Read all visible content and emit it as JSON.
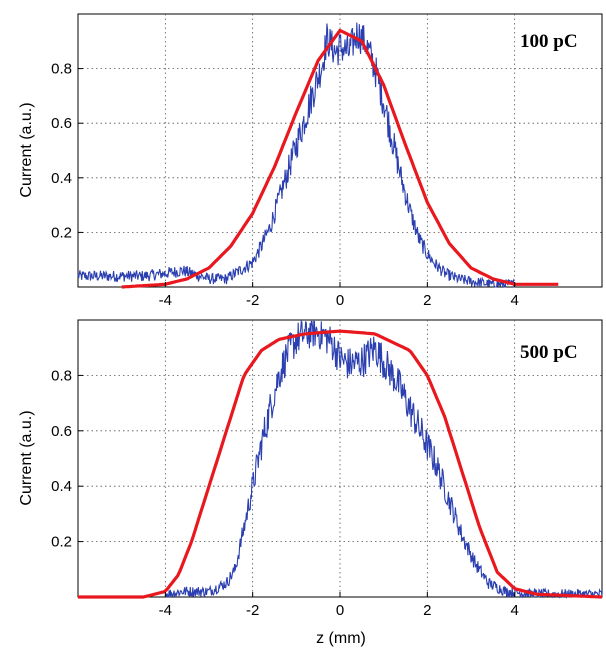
{
  "chart_data": [
    {
      "type": "line",
      "annotation": "100 pC",
      "xlabel": "",
      "ylabel": "Current (a.u.)",
      "xlim": [
        -6,
        6
      ],
      "ylim": [
        0,
        1
      ],
      "xticks": [
        "-4",
        "-2",
        "0",
        "2",
        "4"
      ],
      "yticks": [
        "0.2",
        "0.4",
        "0.6",
        "0.8"
      ],
      "grid": true,
      "series": [
        {
          "color": "#2b3fb0",
          "style": "noisy",
          "points": [
            [
              -6.0,
              0.04
            ],
            [
              -5.0,
              0.04
            ],
            [
              -4.5,
              0.04
            ],
            [
              -4.0,
              0.05
            ],
            [
              -3.6,
              0.06
            ],
            [
              -3.2,
              0.04
            ],
            [
              -3.0,
              0.03
            ],
            [
              -2.6,
              0.03
            ],
            [
              -2.4,
              0.05
            ],
            [
              -2.2,
              0.07
            ],
            [
              -2.0,
              0.09
            ],
            [
              -1.8,
              0.15
            ],
            [
              -1.6,
              0.22
            ],
            [
              -1.4,
              0.32
            ],
            [
              -1.2,
              0.42
            ],
            [
              -1.0,
              0.52
            ],
            [
              -0.8,
              0.62
            ],
            [
              -0.6,
              0.72
            ],
            [
              -0.4,
              0.82
            ],
            [
              -0.3,
              0.91
            ],
            [
              -0.1,
              0.86
            ],
            [
              0.0,
              0.88
            ],
            [
              0.2,
              0.86
            ],
            [
              0.4,
              0.93
            ],
            [
              0.6,
              0.89
            ],
            [
              0.8,
              0.8
            ],
            [
              1.0,
              0.68
            ],
            [
              1.2,
              0.54
            ],
            [
              1.4,
              0.4
            ],
            [
              1.6,
              0.28
            ],
            [
              1.8,
              0.18
            ],
            [
              2.0,
              0.12
            ],
            [
              2.2,
              0.08
            ],
            [
              2.4,
              0.05
            ],
            [
              2.7,
              0.03
            ],
            [
              3.0,
              0.02
            ],
            [
              3.5,
              0.01
            ],
            [
              4.0,
              0.01
            ]
          ]
        },
        {
          "color": "#e8181e",
          "style": "smooth",
          "points": [
            [
              -5.0,
              0.0
            ],
            [
              -4.0,
              0.01
            ],
            [
              -3.5,
              0.03
            ],
            [
              -3.0,
              0.07
            ],
            [
              -2.5,
              0.15
            ],
            [
              -2.0,
              0.27
            ],
            [
              -1.5,
              0.44
            ],
            [
              -1.0,
              0.64
            ],
            [
              -0.5,
              0.83
            ],
            [
              0.0,
              0.94
            ],
            [
              0.5,
              0.9
            ],
            [
              1.0,
              0.74
            ],
            [
              1.5,
              0.52
            ],
            [
              2.0,
              0.31
            ],
            [
              2.5,
              0.16
            ],
            [
              3.0,
              0.07
            ],
            [
              3.5,
              0.03
            ],
            [
              4.0,
              0.01
            ],
            [
              5.0,
              0.01
            ]
          ]
        }
      ]
    },
    {
      "type": "line",
      "annotation": "500 pC",
      "xlabel": "z (mm)",
      "ylabel": "Current (a.u.)",
      "xlim": [
        -6,
        6
      ],
      "ylim": [
        0,
        1
      ],
      "xticks": [
        "-4",
        "-2",
        "0",
        "2",
        "4"
      ],
      "yticks": [
        "0.2",
        "0.4",
        "0.6",
        "0.8"
      ],
      "grid": true,
      "series": [
        {
          "color": "#2b3fb0",
          "style": "noisy",
          "points": [
            [
              -4.0,
              0.01
            ],
            [
              -3.6,
              0.02
            ],
            [
              -3.0,
              0.02
            ],
            [
              -2.6,
              0.05
            ],
            [
              -2.4,
              0.1
            ],
            [
              -2.2,
              0.25
            ],
            [
              -2.0,
              0.4
            ],
            [
              -1.8,
              0.55
            ],
            [
              -1.6,
              0.68
            ],
            [
              -1.4,
              0.8
            ],
            [
              -1.2,
              0.88
            ],
            [
              -1.0,
              0.93
            ],
            [
              -0.8,
              0.95
            ],
            [
              -0.6,
              0.96
            ],
            [
              -0.4,
              0.95
            ],
            [
              -0.2,
              0.92
            ],
            [
              0.0,
              0.86
            ],
            [
              0.2,
              0.84
            ],
            [
              0.5,
              0.85
            ],
            [
              0.8,
              0.9
            ],
            [
              1.0,
              0.85
            ],
            [
              1.3,
              0.78
            ],
            [
              1.6,
              0.68
            ],
            [
              1.9,
              0.58
            ],
            [
              2.2,
              0.48
            ],
            [
              2.5,
              0.35
            ],
            [
              2.8,
              0.22
            ],
            [
              3.1,
              0.12
            ],
            [
              3.4,
              0.05
            ],
            [
              3.8,
              0.02
            ],
            [
              4.5,
              0.01
            ],
            [
              6.0,
              0.01
            ]
          ]
        },
        {
          "color": "#e8181e",
          "style": "smooth",
          "points": [
            [
              -6.0,
              0.0
            ],
            [
              -4.5,
              0.0
            ],
            [
              -4.0,
              0.02
            ],
            [
              -3.7,
              0.08
            ],
            [
              -3.4,
              0.2
            ],
            [
              -3.0,
              0.4
            ],
            [
              -2.6,
              0.6
            ],
            [
              -2.2,
              0.8
            ],
            [
              -1.8,
              0.89
            ],
            [
              -1.4,
              0.93
            ],
            [
              -0.8,
              0.95
            ],
            [
              0.0,
              0.96
            ],
            [
              0.8,
              0.95
            ],
            [
              1.6,
              0.89
            ],
            [
              2.0,
              0.8
            ],
            [
              2.4,
              0.65
            ],
            [
              2.8,
              0.45
            ],
            [
              3.2,
              0.25
            ],
            [
              3.6,
              0.09
            ],
            [
              4.0,
              0.03
            ],
            [
              4.5,
              0.01
            ],
            [
              6.0,
              0.0
            ]
          ]
        }
      ]
    }
  ]
}
